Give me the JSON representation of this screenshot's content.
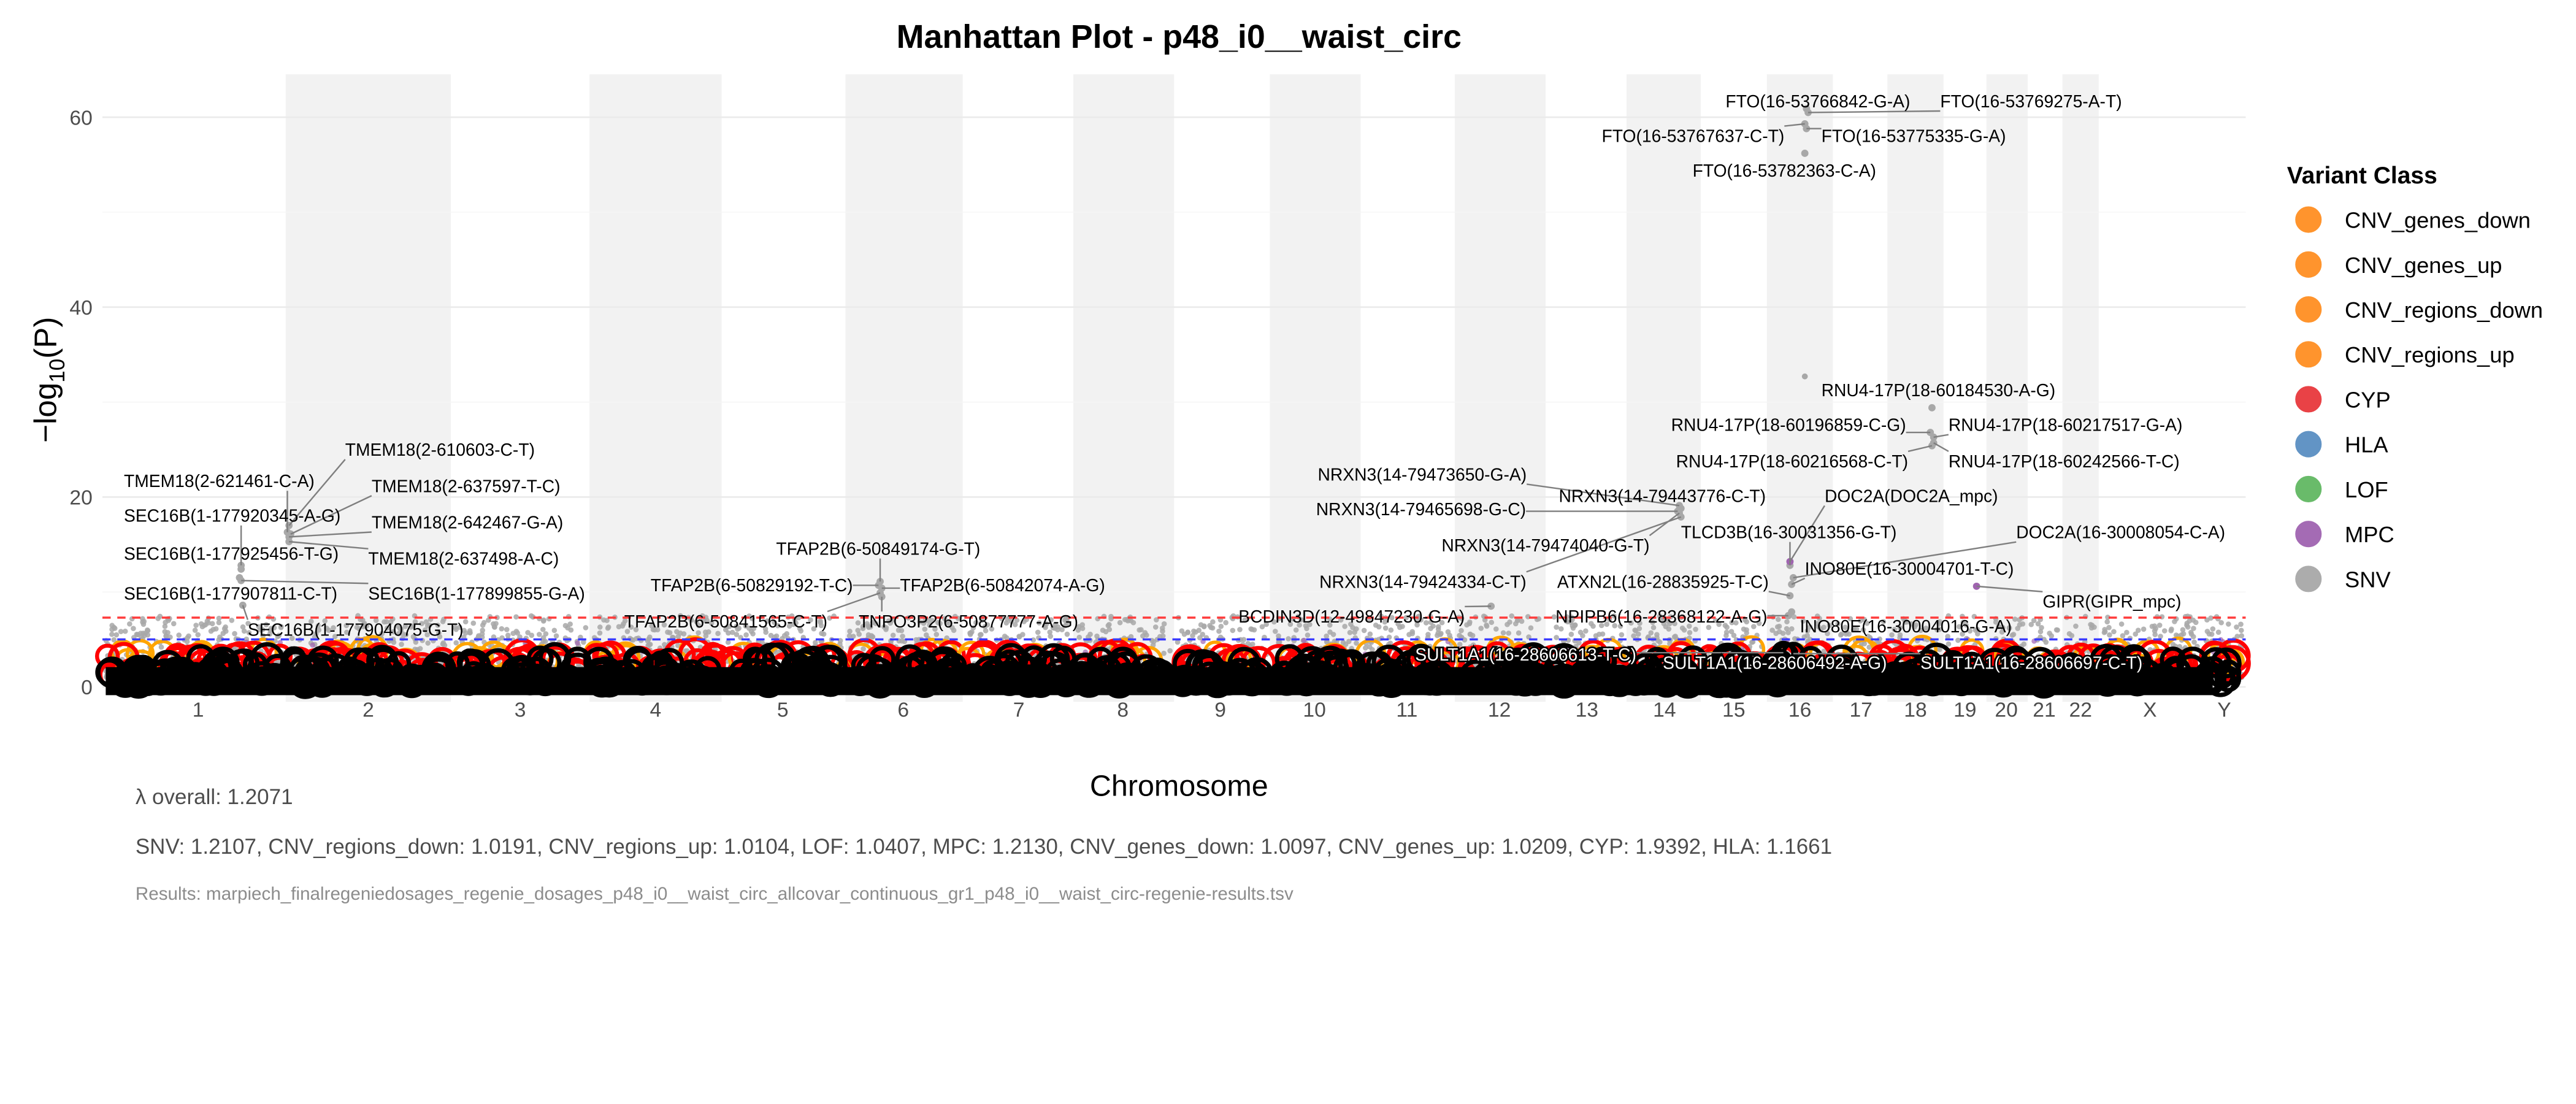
{
  "chart_data": {
    "type": "scatter",
    "title": "Manhattan Plot - p48_i0__waist_circ",
    "xlabel": "Chromosome",
    "ylabel_prefix": "−log",
    "ylabel_sub": "10",
    "ylabel_suffix": "(P)",
    "ylim": [
      0,
      64
    ],
    "yticks": [
      "0",
      "20",
      "40",
      "60"
    ],
    "ytick_values": [
      0,
      20,
      40,
      60
    ],
    "chromosomes": [
      "1",
      "2",
      "3",
      "4",
      "5",
      "6",
      "7",
      "8",
      "9",
      "10",
      "11",
      "12",
      "13",
      "14",
      "15",
      "16",
      "17",
      "18",
      "19",
      "20",
      "21",
      "22",
      "X",
      "Y"
    ],
    "thresholds": [
      {
        "name": "genome-wide",
        "value": 7.3,
        "color": "#ff3b3b"
      },
      {
        "name": "suggestive",
        "value": 5,
        "color": "#3b3bff"
      }
    ],
    "legend": {
      "title": "Variant Class",
      "position": "right",
      "items": [
        {
          "label": "CNV_genes_down",
          "color": "#ff8f22"
        },
        {
          "label": "CNV_genes_up",
          "color": "#ff8f22"
        },
        {
          "label": "CNV_regions_down",
          "color": "#ff8f22"
        },
        {
          "label": "CNV_regions_up",
          "color": "#ff8f22"
        },
        {
          "label": "CYP",
          "color": "#e8383d"
        },
        {
          "label": "HLA",
          "color": "#5a8fc2"
        },
        {
          "label": "LOF",
          "color": "#62b863"
        },
        {
          "label": "MPC",
          "color": "#a064b0"
        },
        {
          "label": "SNV",
          "color": "#a8a8a8"
        }
      ]
    },
    "annotated_hits": [
      {
        "label": "FTO(16-53766842-G-A)",
        "chrom": "16",
        "logp": 60.9,
        "class": "SNV"
      },
      {
        "label": "FTO(16-53769275-A-T)",
        "chrom": "16",
        "logp": 60.5,
        "class": "SNV"
      },
      {
        "label": "FTO(16-53767637-C-T)",
        "chrom": "16",
        "logp": 59.3,
        "class": "SNV"
      },
      {
        "label": "FTO(16-53775335-G-A)",
        "chrom": "16",
        "logp": 58.8,
        "class": "SNV"
      },
      {
        "label": "FTO(16-53782363-C-A)",
        "chrom": "16",
        "logp": 56.2,
        "class": "SNV"
      },
      {
        "label": "RNU4-17P(18-60184530-A-G)",
        "chrom": "18",
        "logp": 29.4,
        "class": "SNV"
      },
      {
        "label": "RNU4-17P(18-60196859-C-G)",
        "chrom": "18",
        "logp": 26.8,
        "class": "SNV"
      },
      {
        "label": "RNU4-17P(18-60217517-G-A)",
        "chrom": "18",
        "logp": 26.3,
        "class": "SNV"
      },
      {
        "label": "RNU4-17P(18-60216568-C-T)",
        "chrom": "18",
        "logp": 25.4,
        "class": "SNV"
      },
      {
        "label": "RNU4-17P(18-60242566-T-C)",
        "chrom": "18",
        "logp": 25.7,
        "class": "SNV"
      },
      {
        "label": "TMEM18(2-610603-C-T)",
        "chrom": "2",
        "logp": 17.0,
        "class": "SNV"
      },
      {
        "label": "TMEM18(2-621461-C-A)",
        "chrom": "2",
        "logp": 16.3,
        "class": "SNV"
      },
      {
        "label": "TMEM18(2-637597-T-C)",
        "chrom": "2",
        "logp": 16.1,
        "class": "SNV"
      },
      {
        "label": "SEC16B(1-177920345-A-G)",
        "chrom": "1",
        "logp": 12.8,
        "class": "SNV"
      },
      {
        "label": "TMEM18(2-642467-G-A)",
        "chrom": "2",
        "logp": 15.8,
        "class": "SNV"
      },
      {
        "label": "SEC16B(1-177925456-T-G)",
        "chrom": "1",
        "logp": 12.4,
        "class": "SNV"
      },
      {
        "label": "TMEM18(2-637498-A-C)",
        "chrom": "2",
        "logp": 15.3,
        "class": "SNV"
      },
      {
        "label": "SEC16B(1-177907811-C-T)",
        "chrom": "1",
        "logp": 11.5,
        "class": "SNV"
      },
      {
        "label": "SEC16B(1-177899855-G-A)",
        "chrom": "1",
        "logp": 11.2,
        "class": "SNV"
      },
      {
        "label": "SEC16B(1-177904075-G-T)",
        "chrom": "1",
        "logp": 8.6,
        "class": "SNV"
      },
      {
        "label": "TFAP2B(6-50849174-G-T)",
        "chrom": "6",
        "logp": 11.1,
        "class": "SNV"
      },
      {
        "label": "TFAP2B(6-50829192-T-C)",
        "chrom": "6",
        "logp": 10.7,
        "class": "SNV"
      },
      {
        "label": "TFAP2B(6-50842074-A-G)",
        "chrom": "6",
        "logp": 10.4,
        "class": "SNV"
      },
      {
        "label": "TFAP2B(6-50841565-C-T)",
        "chrom": "6",
        "logp": 9.9,
        "class": "SNV"
      },
      {
        "label": "TNPO3P2(6-50877777-A-G)",
        "chrom": "6",
        "logp": 9.5,
        "class": "SNV"
      },
      {
        "label": "NRXN3(14-79473650-G-A)",
        "chrom": "14",
        "logp": 19.1,
        "class": "SNV"
      },
      {
        "label": "NRXN3(14-79443776-C-T)",
        "chrom": "14",
        "logp": 18.8,
        "class": "SNV"
      },
      {
        "label": "NRXN3(14-79465698-G-C)",
        "chrom": "14",
        "logp": 18.5,
        "class": "SNV"
      },
      {
        "label": "NRXN3(14-79474040-G-T)",
        "chrom": "14",
        "logp": 18.3,
        "class": "SNV"
      },
      {
        "label": "NRXN3(14-79424334-C-T)",
        "chrom": "14",
        "logp": 17.9,
        "class": "SNV"
      },
      {
        "label": "ATXN2L(16-28835925-T-C)",
        "chrom": "16",
        "logp": 9.6,
        "class": "SNV"
      },
      {
        "label": "BCDIN3D(12-49847230-G-A)",
        "chrom": "12",
        "logp": 8.5,
        "class": "SNV"
      },
      {
        "label": "NPIPB6(16-28368122-A-G)",
        "chrom": "16",
        "logp": 7.5,
        "class": "SNV"
      },
      {
        "label": "TLCD3B(16-30031356-G-T)",
        "chrom": "16",
        "logp": 12.8,
        "class": "SNV"
      },
      {
        "label": "DOC2A(DOC2A_mpc)",
        "chrom": "16",
        "logp": 13.2,
        "class": "MPC"
      },
      {
        "label": "DOC2A(16-30008054-C-A)",
        "chrom": "16",
        "logp": 11.5,
        "class": "SNV"
      },
      {
        "label": "INO80E(16-30004701-T-C)",
        "chrom": "16",
        "logp": 10.8,
        "class": "SNV"
      },
      {
        "label": "GIPR(GIPR_mpc)",
        "chrom": "19",
        "logp": 10.6,
        "class": "MPC"
      },
      {
        "label": "INO80E(16-30004016-G-A)",
        "chrom": "16",
        "logp": 7.9,
        "class": "SNV"
      },
      {
        "label": "SULT1A1(16-28606613-T-C)",
        "chrom": "16",
        "logp": 3.6,
        "class": "CYP"
      },
      {
        "label": "SULT1A1(16-28606492-A-G)",
        "chrom": "16",
        "logp": 3.4,
        "class": "CYP"
      },
      {
        "label": "SULT1A1(16-28606697-C-T)",
        "chrom": "16",
        "logp": 3.5,
        "class": "CYP"
      }
    ],
    "extra_points": [
      {
        "chrom": "16",
        "logp": 32.7,
        "class": "SNV"
      }
    ]
  },
  "footer": {
    "lambda_overall": "λ overall: 1.2071",
    "lambda_by_class": "SNV: 1.2107, CNV_regions_down: 1.0191, CNV_regions_up: 1.0104, LOF: 1.0407, MPC: 1.2130, CNV_genes_down: 1.0097, CNV_genes_up: 1.0209, CYP: 1.9392, HLA: 1.1661",
    "results_file": "Results: marpiech_finalregeniedosages_regenie_dosages_p48_i0__waist_circ_allcovar_continuous_gr1_p48_i0__waist_circ-regenie-results.tsv"
  }
}
